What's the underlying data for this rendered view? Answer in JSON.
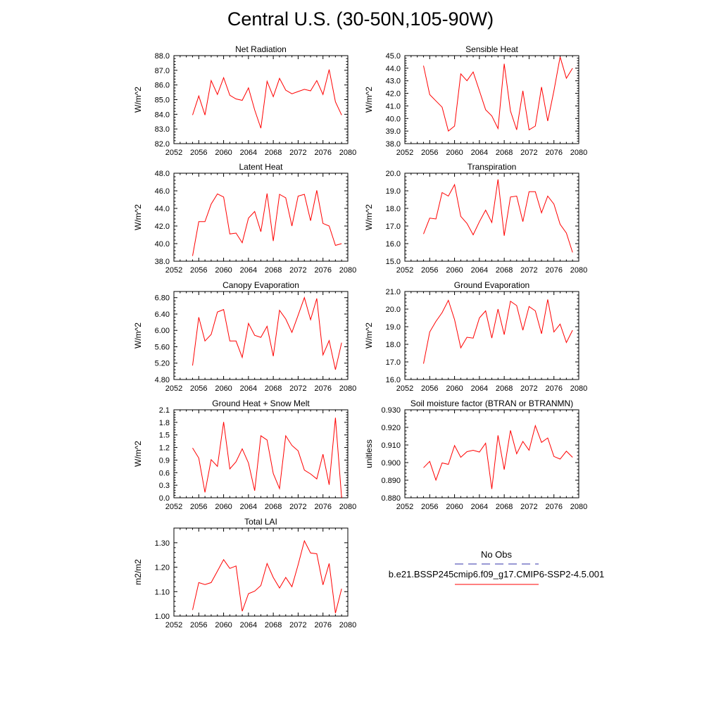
{
  "figure": {
    "title": "Central U.S. (30-50N,105-90W)"
  },
  "legend": {
    "obs_label": "No Obs",
    "obs_color": "#3333aa",
    "model_label": "b.e21.BSSP245cmip6.f09_g17.CMIP6-SSP2-4.5.001",
    "model_color": "#ff0000"
  },
  "chart_data": [
    {
      "id": "net-radiation",
      "type": "line",
      "title": "Net Radiation",
      "xlabel": "",
      "ylabel": "W/m^2",
      "xlim": [
        2052,
        2080
      ],
      "ylim": [
        82.0,
        88.0
      ],
      "xticks": [
        2052,
        2056,
        2060,
        2064,
        2068,
        2072,
        2076,
        2080
      ],
      "yticks": [
        "82.0",
        "83.0",
        "84.0",
        "85.0",
        "86.0",
        "87.0",
        "88.0"
      ],
      "x": [
        2055,
        2056,
        2057,
        2058,
        2059,
        2060,
        2061,
        2062,
        2063,
        2064,
        2065,
        2066,
        2067,
        2068,
        2069,
        2070,
        2071,
        2072,
        2073,
        2074,
        2075,
        2076,
        2077,
        2078,
        2079
      ],
      "series": [
        {
          "values": [
            83.95,
            85.25,
            83.95,
            86.3,
            85.35,
            86.5,
            85.3,
            85.05,
            84.95,
            85.8,
            84.3,
            83.05,
            86.25,
            85.2,
            86.45,
            85.65,
            85.4,
            85.55,
            85.7,
            85.6,
            86.3,
            85.35,
            87.05,
            84.85,
            83.95
          ],
          "color": "#ff0000"
        }
      ]
    },
    {
      "id": "sensible-heat",
      "type": "line",
      "title": "Sensible Heat",
      "xlabel": "",
      "ylabel": "W/m^2",
      "xlim": [
        2052,
        2080
      ],
      "ylim": [
        38.0,
        45.0
      ],
      "xticks": [
        2052,
        2056,
        2060,
        2064,
        2068,
        2072,
        2076,
        2080
      ],
      "yticks": [
        "38.0",
        "39.0",
        "40.0",
        "41.0",
        "42.0",
        "43.0",
        "44.0",
        "45.0"
      ],
      "x": [
        2055,
        2056,
        2057,
        2058,
        2059,
        2060,
        2061,
        2062,
        2063,
        2064,
        2065,
        2066,
        2067,
        2068,
        2069,
        2070,
        2071,
        2072,
        2073,
        2074,
        2075,
        2076,
        2077,
        2078,
        2079
      ],
      "series": [
        {
          "values": [
            44.2,
            41.9,
            41.4,
            40.9,
            39.0,
            39.4,
            43.55,
            43.0,
            43.7,
            42.2,
            40.7,
            40.2,
            39.2,
            44.35,
            40.6,
            39.1,
            42.2,
            39.1,
            39.4,
            42.5,
            39.8,
            42.2,
            44.9,
            43.2,
            44.0
          ],
          "color": "#ff0000"
        }
      ]
    },
    {
      "id": "latent-heat",
      "type": "line",
      "title": "Latent Heat",
      "xlabel": "",
      "ylabel": "W/m^2",
      "xlim": [
        2052,
        2080
      ],
      "ylim": [
        38.0,
        48.0
      ],
      "xticks": [
        2052,
        2056,
        2060,
        2064,
        2068,
        2072,
        2076,
        2080
      ],
      "yticks": [
        "38.0",
        "40.0",
        "42.0",
        "44.0",
        "46.0",
        "48.0"
      ],
      "x": [
        2055,
        2056,
        2057,
        2058,
        2059,
        2060,
        2061,
        2062,
        2063,
        2064,
        2065,
        2066,
        2067,
        2068,
        2069,
        2070,
        2071,
        2072,
        2073,
        2074,
        2075,
        2076,
        2077,
        2078,
        2079
      ],
      "series": [
        {
          "values": [
            38.6,
            42.5,
            42.5,
            44.5,
            45.65,
            45.3,
            41.1,
            41.2,
            40.1,
            42.9,
            43.65,
            41.35,
            45.7,
            40.3,
            45.6,
            45.2,
            42.0,
            45.4,
            45.6,
            42.6,
            46.05,
            42.3,
            42.0,
            39.8,
            40.0
          ],
          "color": "#ff0000"
        }
      ]
    },
    {
      "id": "transpiration",
      "type": "line",
      "title": "Transpiration",
      "xlabel": "",
      "ylabel": "W/m^2",
      "xlim": [
        2052,
        2080
      ],
      "ylim": [
        15.0,
        20.0
      ],
      "xticks": [
        2052,
        2056,
        2060,
        2064,
        2068,
        2072,
        2076,
        2080
      ],
      "yticks": [
        "15.0",
        "16.0",
        "17.0",
        "18.0",
        "19.0",
        "20.0"
      ],
      "x": [
        2055,
        2056,
        2057,
        2058,
        2059,
        2060,
        2061,
        2062,
        2063,
        2064,
        2065,
        2066,
        2067,
        2068,
        2069,
        2070,
        2071,
        2072,
        2073,
        2074,
        2075,
        2076,
        2077,
        2078,
        2079
      ],
      "series": [
        {
          "values": [
            16.55,
            17.45,
            17.4,
            18.9,
            18.7,
            19.35,
            17.55,
            17.15,
            16.5,
            17.25,
            17.9,
            17.2,
            19.65,
            16.45,
            18.65,
            18.7,
            17.25,
            18.95,
            18.95,
            17.75,
            18.7,
            18.25,
            17.1,
            16.6,
            15.5
          ],
          "color": "#ff0000"
        }
      ]
    },
    {
      "id": "canopy-evaporation",
      "type": "line",
      "title": "Canopy Evaporation",
      "xlabel": "",
      "ylabel": "W/m^2",
      "xlim": [
        2052,
        2080
      ],
      "ylim": [
        4.8,
        6.95
      ],
      "xticks": [
        2052,
        2056,
        2060,
        2064,
        2068,
        2072,
        2076,
        2080
      ],
      "yticks": [
        "4.80",
        "5.20",
        "5.60",
        "6.00",
        "6.40",
        "6.80"
      ],
      "x": [
        2055,
        2056,
        2057,
        2058,
        2059,
        2060,
        2061,
        2062,
        2063,
        2064,
        2065,
        2066,
        2067,
        2068,
        2069,
        2070,
        2071,
        2072,
        2073,
        2074,
        2075,
        2076,
        2077,
        2078,
        2079
      ],
      "series": [
        {
          "values": [
            5.14,
            6.32,
            5.74,
            5.9,
            6.45,
            6.51,
            5.74,
            5.74,
            5.34,
            6.17,
            5.88,
            5.83,
            6.1,
            5.37,
            6.49,
            6.28,
            5.95,
            6.37,
            6.8,
            6.26,
            6.78,
            5.4,
            5.75,
            5.04,
            5.7
          ],
          "color": "#ff0000"
        }
      ]
    },
    {
      "id": "ground-evaporation",
      "type": "line",
      "title": "Ground Evaporation",
      "xlabel": "",
      "ylabel": "W/m^2",
      "xlim": [
        2052,
        2080
      ],
      "ylim": [
        16.0,
        21.0
      ],
      "xticks": [
        2052,
        2056,
        2060,
        2064,
        2068,
        2072,
        2076,
        2080
      ],
      "yticks": [
        "16.0",
        "17.0",
        "18.0",
        "19.0",
        "20.0",
        "21.0"
      ],
      "x": [
        2055,
        2056,
        2057,
        2058,
        2059,
        2060,
        2061,
        2062,
        2063,
        2064,
        2065,
        2066,
        2067,
        2068,
        2069,
        2070,
        2071,
        2072,
        2073,
        2074,
        2075,
        2076,
        2077,
        2078,
        2079
      ],
      "series": [
        {
          "values": [
            16.9,
            18.7,
            19.3,
            19.8,
            20.5,
            19.4,
            17.8,
            18.4,
            18.35,
            19.5,
            19.9,
            18.35,
            20.0,
            18.55,
            20.45,
            20.2,
            18.8,
            20.15,
            19.9,
            18.6,
            20.55,
            18.7,
            19.15,
            18.1,
            18.8
          ],
          "color": "#ff0000"
        }
      ]
    },
    {
      "id": "ground-heat-snow-melt",
      "type": "line",
      "title": "Ground Heat + Snow Melt",
      "xlabel": "",
      "ylabel": "W/m^2",
      "xlim": [
        2052,
        2080
      ],
      "ylim": [
        0.0,
        2.1
      ],
      "xticks": [
        2052,
        2056,
        2060,
        2064,
        2068,
        2072,
        2076,
        2080
      ],
      "yticks": [
        "0.0",
        "0.3",
        "0.6",
        "0.9",
        "1.2",
        "1.5",
        "1.8",
        "2.1"
      ],
      "x": [
        2055,
        2056,
        2057,
        2058,
        2059,
        2060,
        2061,
        2062,
        2063,
        2064,
        2065,
        2066,
        2067,
        2068,
        2069,
        2070,
        2071,
        2072,
        2073,
        2074,
        2075,
        2076,
        2077,
        2078,
        2079
      ],
      "series": [
        {
          "values": [
            1.19,
            0.95,
            0.13,
            0.91,
            0.75,
            1.81,
            0.69,
            0.86,
            1.17,
            0.83,
            0.17,
            1.48,
            1.38,
            0.58,
            0.22,
            1.48,
            1.25,
            1.12,
            0.66,
            0.57,
            0.45,
            1.04,
            0.31,
            1.91,
            0.0
          ],
          "color": "#ff0000"
        }
      ]
    },
    {
      "id": "soil-moisture-factor",
      "type": "line",
      "title": "Soil moisture factor (BTRAN or BTRANMN)",
      "xlabel": "",
      "ylabel": "unitless",
      "xlim": [
        2052,
        2080
      ],
      "ylim": [
        0.88,
        0.93
      ],
      "xticks": [
        2052,
        2056,
        2060,
        2064,
        2068,
        2072,
        2076,
        2080
      ],
      "yticks": [
        "0.880",
        "0.890",
        "0.900",
        "0.910",
        "0.920",
        "0.930"
      ],
      "x": [
        2055,
        2056,
        2057,
        2058,
        2059,
        2060,
        2061,
        2062,
        2063,
        2064,
        2065,
        2066,
        2067,
        2068,
        2069,
        2070,
        2071,
        2072,
        2073,
        2074,
        2075,
        2076,
        2077,
        2078,
        2079
      ],
      "series": [
        {
          "values": [
            0.8971,
            0.9007,
            0.8901,
            0.8998,
            0.899,
            0.9097,
            0.903,
            0.9062,
            0.907,
            0.906,
            0.911,
            0.885,
            0.9155,
            0.896,
            0.9183,
            0.905,
            0.912,
            0.907,
            0.921,
            0.9115,
            0.914,
            0.9035,
            0.902,
            0.9065,
            0.903
          ],
          "color": "#ff0000"
        }
      ]
    },
    {
      "id": "total-lai",
      "type": "line",
      "title": "Total LAI",
      "xlabel": "",
      "ylabel": "m2/m2",
      "xlim": [
        2052,
        2080
      ],
      "ylim": [
        1.0,
        1.36
      ],
      "xticks": [
        2052,
        2056,
        2060,
        2064,
        2068,
        2072,
        2076,
        2080
      ],
      "yticks": [
        "1.00",
        "1.10",
        "1.20",
        "1.30"
      ],
      "x": [
        2055,
        2056,
        2057,
        2058,
        2059,
        2060,
        2061,
        2062,
        2063,
        2064,
        2065,
        2066,
        2067,
        2068,
        2069,
        2070,
        2071,
        2072,
        2073,
        2074,
        2075,
        2076,
        2077,
        2078,
        2079
      ],
      "series": [
        {
          "values": [
            1.025,
            1.137,
            1.129,
            1.137,
            1.184,
            1.231,
            1.195,
            1.205,
            1.02,
            1.092,
            1.102,
            1.125,
            1.215,
            1.158,
            1.115,
            1.158,
            1.12,
            1.21,
            1.308,
            1.258,
            1.255,
            1.128,
            1.215,
            1.012,
            1.112
          ],
          "color": "#ff0000"
        }
      ]
    }
  ]
}
